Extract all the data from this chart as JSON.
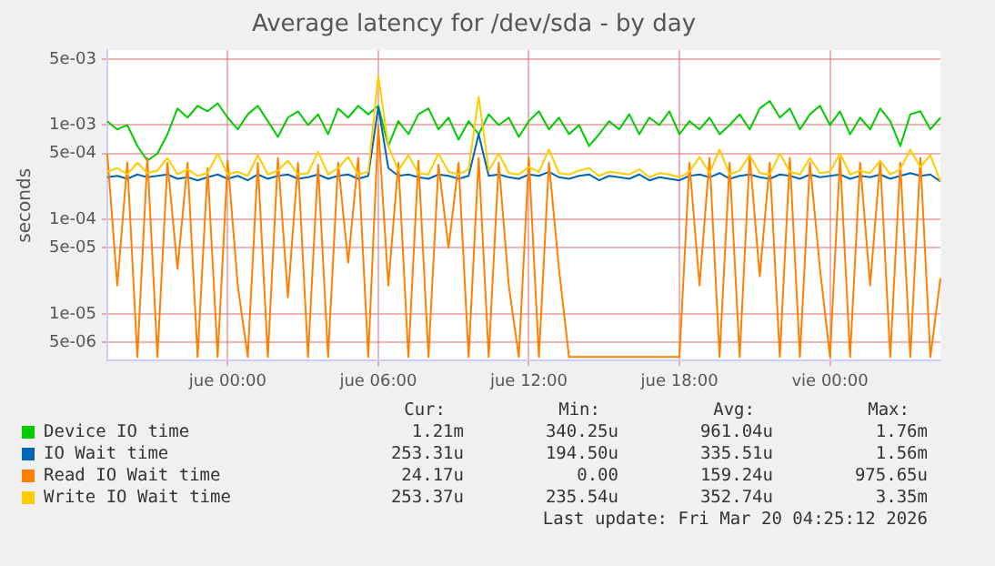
{
  "chart_data": {
    "type": "line",
    "title": "Average latency for /dev/sda - by day",
    "ylabel": "seconds",
    "log": "y",
    "grid": true,
    "legend": "bottom",
    "marker": "none",
    "line_style": "solid",
    "categories": [
      null,
      null,
      null,
      null,
      null,
      null,
      null,
      null,
      null,
      null,
      null,
      null,
      "jue 00:00",
      null,
      null,
      null,
      null,
      null,
      null,
      null,
      null,
      null,
      null,
      null,
      null,
      null,
      null,
      "jue 06:00",
      null,
      null,
      null,
      null,
      null,
      null,
      null,
      null,
      null,
      null,
      null,
      null,
      null,
      null,
      "jue 12:00",
      null,
      null,
      null,
      null,
      null,
      null,
      null,
      null,
      null,
      null,
      null,
      null,
      null,
      null,
      "jue 18:00",
      null,
      null,
      null,
      null,
      null,
      null,
      null,
      null,
      null,
      null,
      null,
      null,
      null,
      null,
      "vie 00:00",
      null,
      null,
      null,
      null,
      null,
      null,
      null,
      null,
      null,
      null,
      null
    ],
    "ylim": [
      3.2e-06,
      0.0062
    ],
    "yticks": [
      {
        "value": 5e-06,
        "label": "5e-06"
      },
      {
        "value": 1e-05,
        "label": "1e-05"
      },
      {
        "value": 5e-05,
        "label": "5e-05"
      },
      {
        "value": 0.0001,
        "label": "1e-04"
      },
      {
        "value": 0.0005,
        "label": "5e-04"
      },
      {
        "value": 0.001,
        "label": "1e-03"
      },
      {
        "value": 0.005,
        "label": "5e-03"
      }
    ],
    "series": [
      {
        "name": "Device IO time",
        "color": "#00cc00",
        "values": [
          0.0011,
          0.0009,
          0.001,
          0.0006,
          0.00042,
          0.0005,
          0.0008,
          0.0015,
          0.0012,
          0.0016,
          0.0014,
          0.0017,
          0.0012,
          0.0009,
          0.0013,
          0.0016,
          0.0011,
          0.00075,
          0.0012,
          0.0014,
          0.001,
          0.0013,
          0.0008,
          0.0015,
          0.0012,
          0.0016,
          0.0013,
          0.0016,
          0.0006,
          0.0011,
          0.0008,
          0.0013,
          0.0015,
          0.0009,
          0.0012,
          0.0007,
          0.0011,
          0.0008,
          0.0013,
          0.001,
          0.0012,
          0.00075,
          0.0011,
          0.0014,
          0.0009,
          0.0012,
          0.0008,
          0.001,
          0.0006,
          0.0008,
          0.0011,
          0.0009,
          0.0013,
          0.0008,
          0.0012,
          0.001,
          0.0014,
          0.0008,
          0.0011,
          0.0009,
          0.0012,
          0.0008,
          0.001,
          0.0013,
          0.0009,
          0.0015,
          0.0018,
          0.0012,
          0.0015,
          0.0009,
          0.0013,
          0.0016,
          0.001,
          0.0014,
          0.0008,
          0.0012,
          0.0009,
          0.0015,
          0.0011,
          0.0006,
          0.0013,
          0.0014,
          0.0009,
          0.0012
        ]
      },
      {
        "name": "IO Wait time",
        "color": "#0066b3",
        "values": [
          0.00028,
          0.00029,
          0.00027,
          0.0003,
          0.00028,
          0.00029,
          0.0003,
          0.00027,
          0.00028,
          0.00026,
          0.00028,
          0.0003,
          0.00027,
          0.00029,
          0.00026,
          0.0003,
          0.00027,
          0.00029,
          0.0003,
          0.00027,
          0.00028,
          0.0003,
          0.00027,
          0.00029,
          0.0003,
          0.00027,
          0.00029,
          0.00156,
          0.00035,
          0.00029,
          0.0003,
          0.00028,
          0.00027,
          0.0003,
          0.00029,
          0.00027,
          0.00029,
          0.0008,
          0.00029,
          0.0003,
          0.00028,
          0.00027,
          0.0003,
          0.00029,
          0.00032,
          0.00028,
          0.00027,
          0.00029,
          0.0003,
          0.00026,
          0.00029,
          0.00028,
          0.00027,
          0.0003,
          0.00026,
          0.00028,
          0.00027,
          0.00026,
          0.00029,
          0.0003,
          0.00028,
          0.00031,
          0.00027,
          0.00029,
          0.0003,
          0.00028,
          0.00027,
          0.0003,
          0.00029,
          0.00027,
          0.0003,
          0.00028,
          0.00029,
          0.0003,
          0.00027,
          0.00029,
          0.00028,
          0.0003,
          0.00027,
          0.00029,
          0.00031,
          0.00029,
          0.0003,
          0.000253
        ]
      },
      {
        "name": "Read IO Wait time",
        "color": "#ff8000",
        "values": [
          0.0005,
          2e-05,
          0.0004,
          3.5e-06,
          0.00045,
          3.5e-06,
          0.0004,
          3e-05,
          0.0004,
          3.5e-06,
          0.00035,
          3.5e-06,
          0.00042,
          2e-05,
          3.5e-06,
          0.0004,
          3.5e-06,
          0.00045,
          1.5e-05,
          0.0004,
          3.5e-06,
          0.00038,
          3.5e-06,
          0.0004,
          3.5e-05,
          0.00045,
          3.5e-06,
          0.000976,
          2e-05,
          0.0004,
          3.5e-06,
          0.00042,
          3.5e-06,
          0.00038,
          5e-05,
          0.0004,
          3.5e-06,
          0.00045,
          3.5e-06,
          0.0004,
          2e-05,
          3.5e-06,
          0.00045,
          3.5e-06,
          0.0004,
          3e-05,
          3.5e-06,
          3.5e-06,
          3.5e-06,
          3.5e-06,
          3.5e-06,
          3.5e-06,
          3.5e-06,
          3.5e-06,
          3.5e-06,
          3.5e-06,
          3.5e-06,
          3.5e-06,
          0.0004,
          2e-05,
          0.00045,
          3.5e-06,
          0.0004,
          3.5e-06,
          0.00048,
          2.5e-05,
          0.0004,
          3.5e-06,
          0.00045,
          3.5e-06,
          0.0004,
          3e-05,
          3.5e-06,
          0.00045,
          3.5e-06,
          0.0004,
          2e-05,
          0.00042,
          3.5e-06,
          0.0004,
          3.5e-06,
          0.00045,
          3.5e-06,
          2.4e-05
        ]
      },
      {
        "name": "Write IO Wait time",
        "color": "#ffcc00",
        "values": [
          0.00032,
          0.00035,
          0.0003,
          0.0004,
          0.00031,
          0.00033,
          0.00045,
          0.0003,
          0.00034,
          0.00029,
          0.00031,
          0.0005,
          0.0003,
          0.00032,
          0.00029,
          0.00048,
          0.0003,
          0.00033,
          0.00042,
          0.0003,
          0.00031,
          0.00052,
          0.0003,
          0.00035,
          0.00046,
          0.0003,
          0.00032,
          0.00335,
          0.0006,
          0.00033,
          0.00048,
          0.00031,
          0.0003,
          0.0005,
          0.00032,
          0.0003,
          0.00034,
          0.002,
          0.00033,
          0.0005,
          0.00031,
          0.0003,
          0.00036,
          0.00032,
          0.00055,
          0.00031,
          0.0003,
          0.00033,
          0.00035,
          0.00029,
          0.00032,
          0.00031,
          0.0003,
          0.00034,
          0.00028,
          0.00031,
          0.0003,
          0.00028,
          0.00032,
          0.00046,
          0.00031,
          0.00055,
          0.0003,
          0.00033,
          0.00048,
          0.00031,
          0.0003,
          0.0005,
          0.00032,
          0.0003,
          0.00045,
          0.00031,
          0.00032,
          0.0005,
          0.0003,
          0.00033,
          0.00031,
          0.00042,
          0.0003,
          0.00034,
          0.00055,
          0.00036,
          0.00048,
          0.000253
        ]
      }
    ],
    "annotations": [
      "Cur:",
      "Min:",
      "Avg:",
      "Max:",
      "1.21m",
      "340.25u",
      "961.04u",
      "1.76m",
      "253.31u",
      "194.50u",
      "335.51u",
      "1.56m",
      "24.17u",
      "0.00",
      "159.24u",
      "975.65u",
      "253.37u",
      "235.54u",
      "352.74u",
      "3.35m",
      "Last update: Fri Mar 20 04:25:12 2026"
    ]
  }
}
